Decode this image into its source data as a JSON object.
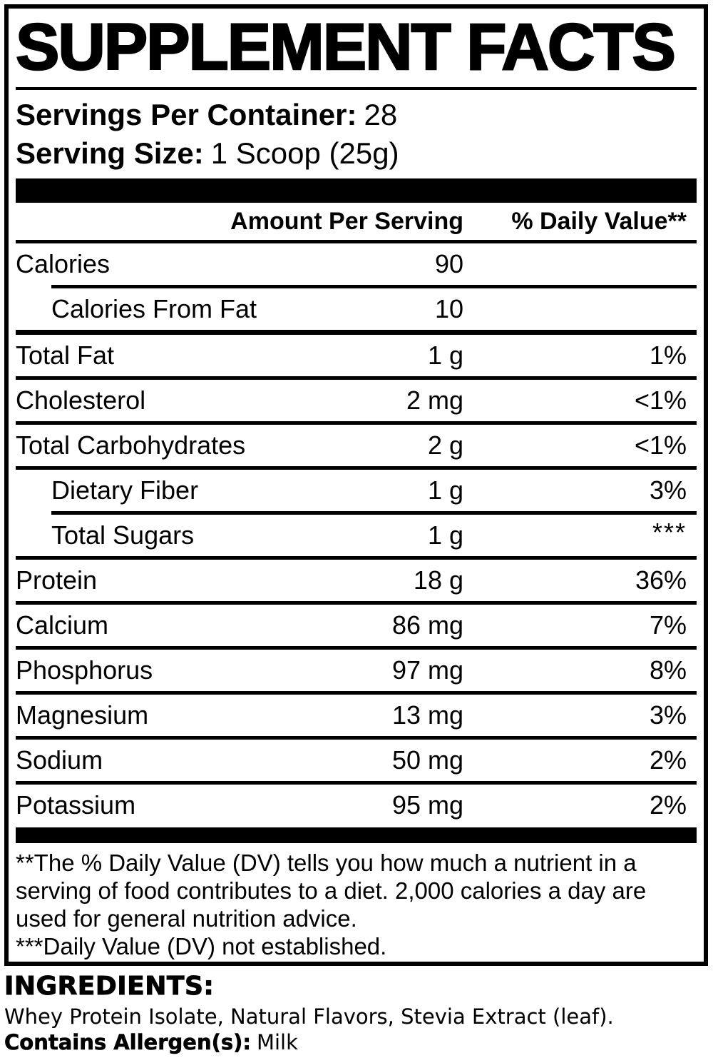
{
  "colors": {
    "text": "#000000",
    "background": "#ffffff"
  },
  "panel": {
    "title": "SUPPLEMENT FACTS",
    "servings_label": "Servings Per Container:",
    "servings_value": "28",
    "serving_size_label": "Serving Size:",
    "serving_size_value": "1 Scoop (25g)"
  },
  "table": {
    "amount_header": "Amount Per Serving",
    "dv_header": "% Daily Value**",
    "rows": [
      {
        "name": "Calories",
        "amount": "90",
        "dv": ""
      },
      {
        "name": "Calories From Fat",
        "amount": "10",
        "dv": ""
      },
      {
        "name": "Total Fat",
        "amount": "1 g",
        "dv": "1%"
      },
      {
        "name": "Cholesterol",
        "amount": "2 mg",
        "dv": "<1%"
      },
      {
        "name": "Total Carbohydrates",
        "amount": "2 g",
        "dv": "<1%"
      },
      {
        "name": "Dietary Fiber",
        "amount": "1 g",
        "dv": "3%"
      },
      {
        "name": "Total Sugars",
        "amount": "1 g",
        "dv": "***"
      },
      {
        "name": "Protein",
        "amount": "18 g",
        "dv": "36%"
      },
      {
        "name": "Calcium",
        "amount": "86 mg",
        "dv": "7%"
      },
      {
        "name": "Phosphorus",
        "amount": "97 mg",
        "dv": "8%"
      },
      {
        "name": "Magnesium",
        "amount": "13 mg",
        "dv": "3%"
      },
      {
        "name": "Sodium",
        "amount": "50 mg",
        "dv": "2%"
      },
      {
        "name": "Potassium",
        "amount": "95 mg",
        "dv": "2%"
      }
    ]
  },
  "footnotes": {
    "dv_note": "**The % Daily Value (DV) tells you how much a nutrient in a serving of food contributes to a diet. 2,000 calories a day are used for general nutrition advice.",
    "not_established_note": "***Daily Value (DV) not established."
  },
  "ingredients": {
    "heading": "INGREDIENTS:",
    "list": "Whey Protein Isolate, Natural Flavors, Stevia Extract (leaf).",
    "allergen_label": "Contains Allergen(s):",
    "allergen_value": "Milk"
  }
}
